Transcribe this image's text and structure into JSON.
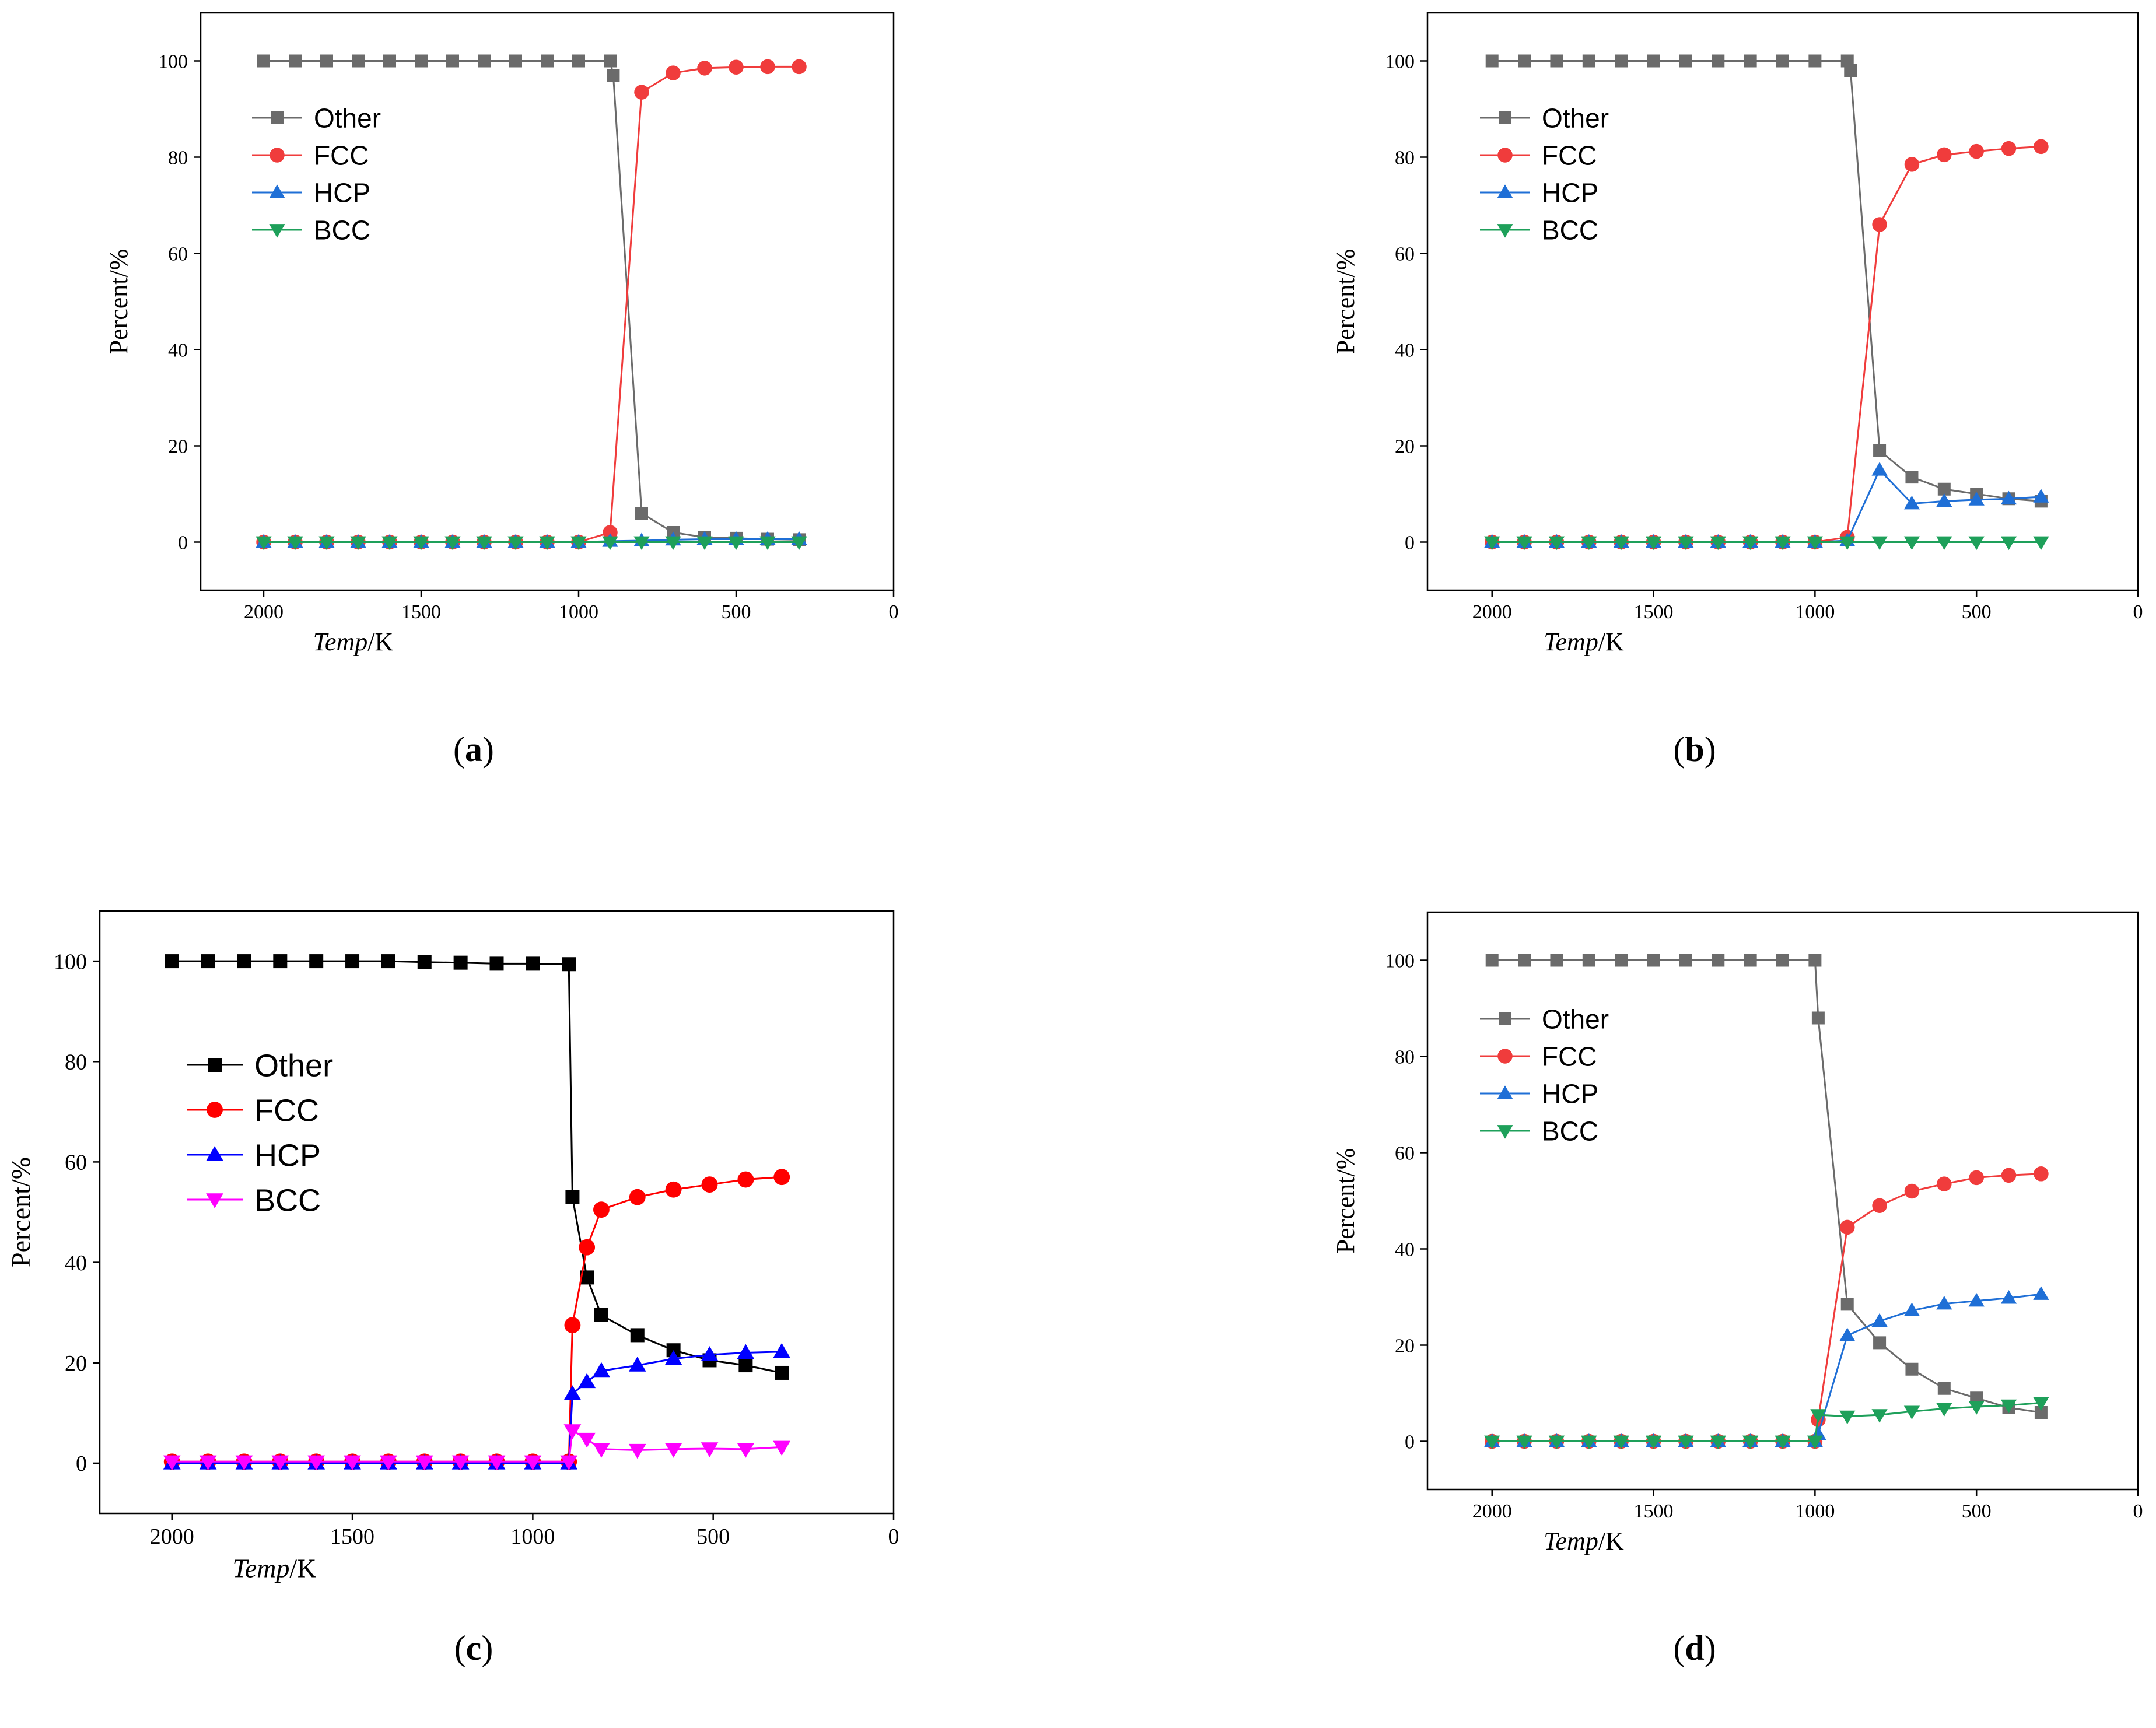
{
  "panel_labels": [
    "(a)",
    "(b)",
    "(c)",
    "(d)"
  ],
  "chart_data": [
    {
      "type": "line",
      "panel": "(a)",
      "xlabel_italic": "Temp",
      "xlabel_unit": "/K",
      "ylabel": "Percent/%",
      "xlim": [
        2200,
        0
      ],
      "ylim": [
        -10,
        110
      ],
      "xticks": [
        "2000",
        "1500",
        "1000",
        "500",
        "0"
      ],
      "yticks": [
        "0",
        "20",
        "40",
        "60",
        "80",
        "100"
      ],
      "legend_position": "upper-left",
      "series": [
        {
          "name": "Other",
          "color": "#6b6b6b",
          "marker": "square",
          "x": [
            2000,
            1900,
            1800,
            1700,
            1600,
            1500,
            1400,
            1300,
            1200,
            1100,
            1000,
            900,
            890,
            800,
            700,
            600,
            500,
            400,
            300
          ],
          "y": [
            100,
            100,
            100,
            100,
            100,
            100,
            100,
            100,
            100,
            100,
            100,
            100,
            97,
            6,
            2,
            1,
            0.8,
            0.6,
            0.5
          ]
        },
        {
          "name": "FCC",
          "color": "#f03c3c",
          "marker": "circle",
          "x": [
            2000,
            1900,
            1800,
            1700,
            1600,
            1500,
            1400,
            1300,
            1200,
            1100,
            1000,
            900,
            800,
            700,
            600,
            500,
            400,
            300
          ],
          "y": [
            0,
            0,
            0,
            0,
            0,
            0,
            0,
            0,
            0,
            0,
            0,
            2,
            93.5,
            97.5,
            98.5,
            98.7,
            98.8,
            98.8
          ]
        },
        {
          "name": "HCP",
          "color": "#1f6fd6",
          "marker": "triangle-up",
          "x": [
            2000,
            1900,
            1800,
            1700,
            1600,
            1500,
            1400,
            1300,
            1200,
            1100,
            1000,
            900,
            800,
            700,
            600,
            500,
            400,
            300
          ],
          "y": [
            0,
            0,
            0,
            0,
            0,
            0,
            0,
            0,
            0,
            0,
            0,
            0.2,
            0.3,
            0.5,
            0.6,
            0.6,
            0.6,
            0.6
          ]
        },
        {
          "name": "BCC",
          "color": "#1ea05a",
          "marker": "triangle-down",
          "x": [
            2000,
            1900,
            1800,
            1700,
            1600,
            1500,
            1400,
            1300,
            1200,
            1100,
            1000,
            900,
            800,
            700,
            600,
            500,
            400,
            300
          ],
          "y": [
            0,
            0,
            0,
            0,
            0,
            0,
            0,
            0,
            0,
            0,
            0,
            0,
            0,
            0,
            0,
            0,
            0,
            0
          ]
        }
      ]
    },
    {
      "type": "line",
      "panel": "(b)",
      "xlabel_italic": "Temp",
      "xlabel_unit": "/K",
      "ylabel": "Percent/%",
      "xlim": [
        2200,
        0
      ],
      "ylim": [
        -10,
        110
      ],
      "xticks": [
        "2000",
        "1500",
        "1000",
        "500",
        "0"
      ],
      "yticks": [
        "0",
        "20",
        "40",
        "60",
        "80",
        "100"
      ],
      "legend_position": "upper-left",
      "series": [
        {
          "name": "Other",
          "color": "#6b6b6b",
          "marker": "square",
          "x": [
            2000,
            1900,
            1800,
            1700,
            1600,
            1500,
            1400,
            1300,
            1200,
            1100,
            1000,
            900,
            890,
            800,
            700,
            600,
            500,
            400,
            300
          ],
          "y": [
            100,
            100,
            100,
            100,
            100,
            100,
            100,
            100,
            100,
            100,
            100,
            100,
            98,
            19,
            13.5,
            11,
            10,
            9,
            8.5
          ]
        },
        {
          "name": "FCC",
          "color": "#f03c3c",
          "marker": "circle",
          "x": [
            2000,
            1900,
            1800,
            1700,
            1600,
            1500,
            1400,
            1300,
            1200,
            1100,
            1000,
            900,
            800,
            700,
            600,
            500,
            400,
            300
          ],
          "y": [
            0,
            0,
            0,
            0,
            0,
            0,
            0,
            0,
            0,
            0,
            0,
            1,
            66,
            78.5,
            80.5,
            81.2,
            81.8,
            82.2
          ]
        },
        {
          "name": "HCP",
          "color": "#1f6fd6",
          "marker": "triangle-up",
          "x": [
            2000,
            1900,
            1800,
            1700,
            1600,
            1500,
            1400,
            1300,
            1200,
            1100,
            1000,
            900,
            800,
            700,
            600,
            500,
            400,
            300
          ],
          "y": [
            0,
            0,
            0,
            0,
            0,
            0,
            0,
            0,
            0,
            0,
            0,
            0.3,
            15,
            8,
            8.5,
            8.8,
            9,
            9.4
          ]
        },
        {
          "name": "BCC",
          "color": "#1ea05a",
          "marker": "triangle-down",
          "x": [
            2000,
            1900,
            1800,
            1700,
            1600,
            1500,
            1400,
            1300,
            1200,
            1100,
            1000,
            900,
            800,
            700,
            600,
            500,
            400,
            300
          ],
          "y": [
            0,
            0,
            0,
            0,
            0,
            0,
            0,
            0,
            0,
            0,
            0,
            0,
            0,
            0,
            0,
            0,
            0,
            0
          ]
        }
      ]
    },
    {
      "type": "line",
      "panel": "(c)",
      "xlabel_italic": "Temp",
      "xlabel_unit": "/K",
      "ylabel": "Percent/%",
      "xlim": [
        2200,
        0
      ],
      "ylim": [
        -10,
        110
      ],
      "xticks": [
        "2000",
        "1500",
        "1000",
        "500",
        "0"
      ],
      "yticks": [
        "0",
        "20",
        "40",
        "60",
        "80",
        "100"
      ],
      "legend_position": "center-left",
      "series": [
        {
          "name": "Other",
          "color": "#000000",
          "marker": "square",
          "x": [
            2000,
            1900,
            1800,
            1700,
            1600,
            1500,
            1400,
            1300,
            1200,
            1100,
            1000,
            900,
            890,
            850,
            810,
            710,
            610,
            510,
            410,
            310
          ],
          "y": [
            100,
            100,
            100,
            100,
            100,
            100,
            100,
            99.8,
            99.7,
            99.5,
            99.5,
            99.4,
            53,
            37,
            29.5,
            25.5,
            22.5,
            20.5,
            19.5,
            18
          ]
        },
        {
          "name": "FCC",
          "color": "#ff0000",
          "marker": "circle",
          "x": [
            2000,
            1900,
            1800,
            1700,
            1600,
            1500,
            1400,
            1300,
            1200,
            1100,
            1000,
            900,
            890,
            850,
            810,
            710,
            610,
            510,
            410,
            310
          ],
          "y": [
            0.3,
            0.3,
            0.3,
            0.3,
            0.3,
            0.3,
            0.3,
            0.3,
            0.3,
            0.3,
            0.3,
            0.3,
            27.5,
            43,
            50.5,
            53,
            54.5,
            55.5,
            56.5,
            57
          ]
        },
        {
          "name": "HCP",
          "color": "#0000ff",
          "marker": "triangle-up",
          "x": [
            2000,
            1900,
            1800,
            1700,
            1600,
            1500,
            1400,
            1300,
            1200,
            1100,
            1000,
            900,
            890,
            850,
            810,
            710,
            610,
            510,
            410,
            310
          ],
          "y": [
            0,
            0,
            0,
            0,
            0,
            0,
            0,
            0,
            0,
            0,
            0,
            0,
            13.8,
            16.2,
            18.4,
            19.5,
            20.8,
            21.6,
            22,
            22.2
          ]
        },
        {
          "name": "BCC",
          "color": "#ff00ff",
          "marker": "triangle-down",
          "x": [
            2000,
            1900,
            1800,
            1700,
            1600,
            1500,
            1400,
            1300,
            1200,
            1100,
            1000,
            900,
            890,
            850,
            810,
            710,
            610,
            510,
            410,
            310
          ],
          "y": [
            0.3,
            0.3,
            0.3,
            0.3,
            0.3,
            0.3,
            0.3,
            0.3,
            0.3,
            0.3,
            0.3,
            0.3,
            6.5,
            4.8,
            2.8,
            2.6,
            2.8,
            2.9,
            2.8,
            3.2
          ]
        }
      ]
    },
    {
      "type": "line",
      "panel": "(d)",
      "xlabel_italic": "Temp",
      "xlabel_unit": "/K",
      "ylabel": "Percent/%",
      "xlim": [
        2200,
        0
      ],
      "ylim": [
        -10,
        110
      ],
      "xticks": [
        "2000",
        "1500",
        "1000",
        "500",
        "0"
      ],
      "yticks": [
        "0",
        "20",
        "40",
        "60",
        "80",
        "100"
      ],
      "legend_position": "upper-left",
      "series": [
        {
          "name": "Other",
          "color": "#6b6b6b",
          "marker": "square",
          "x": [
            2000,
            1900,
            1800,
            1700,
            1600,
            1500,
            1400,
            1300,
            1200,
            1100,
            1000,
            990,
            900,
            800,
            700,
            600,
            500,
            400,
            300
          ],
          "y": [
            100,
            100,
            100,
            100,
            100,
            100,
            100,
            100,
            100,
            100,
            100,
            88,
            28.5,
            20.5,
            15,
            11,
            9,
            7,
            6
          ]
        },
        {
          "name": "FCC",
          "color": "#f03c3c",
          "marker": "circle",
          "x": [
            2000,
            1900,
            1800,
            1700,
            1600,
            1500,
            1400,
            1300,
            1200,
            1100,
            1000,
            990,
            900,
            800,
            700,
            600,
            500,
            400,
            300
          ],
          "y": [
            0,
            0,
            0,
            0,
            0,
            0,
            0,
            0,
            0,
            0,
            0,
            4.5,
            44.5,
            49,
            52,
            53.5,
            54.8,
            55.3,
            55.6
          ]
        },
        {
          "name": "HCP",
          "color": "#1f6fd6",
          "marker": "triangle-up",
          "x": [
            2000,
            1900,
            1800,
            1700,
            1600,
            1500,
            1400,
            1300,
            1200,
            1100,
            1000,
            990,
            900,
            800,
            700,
            600,
            500,
            400,
            300
          ],
          "y": [
            0,
            0,
            0,
            0,
            0,
            0,
            0,
            0,
            0,
            0,
            0,
            1.5,
            22,
            25,
            27.2,
            28.6,
            29.2,
            29.8,
            30.6
          ]
        },
        {
          "name": "BCC",
          "color": "#1ea05a",
          "marker": "triangle-down",
          "x": [
            2000,
            1900,
            1800,
            1700,
            1600,
            1500,
            1400,
            1300,
            1200,
            1100,
            1000,
            990,
            900,
            800,
            700,
            600,
            500,
            400,
            300
          ],
          "y": [
            0,
            0,
            0,
            0,
            0,
            0,
            0,
            0,
            0,
            0,
            0,
            5.5,
            5.2,
            5.5,
            6.2,
            6.8,
            7.2,
            7.5,
            8
          ]
        }
      ]
    }
  ]
}
